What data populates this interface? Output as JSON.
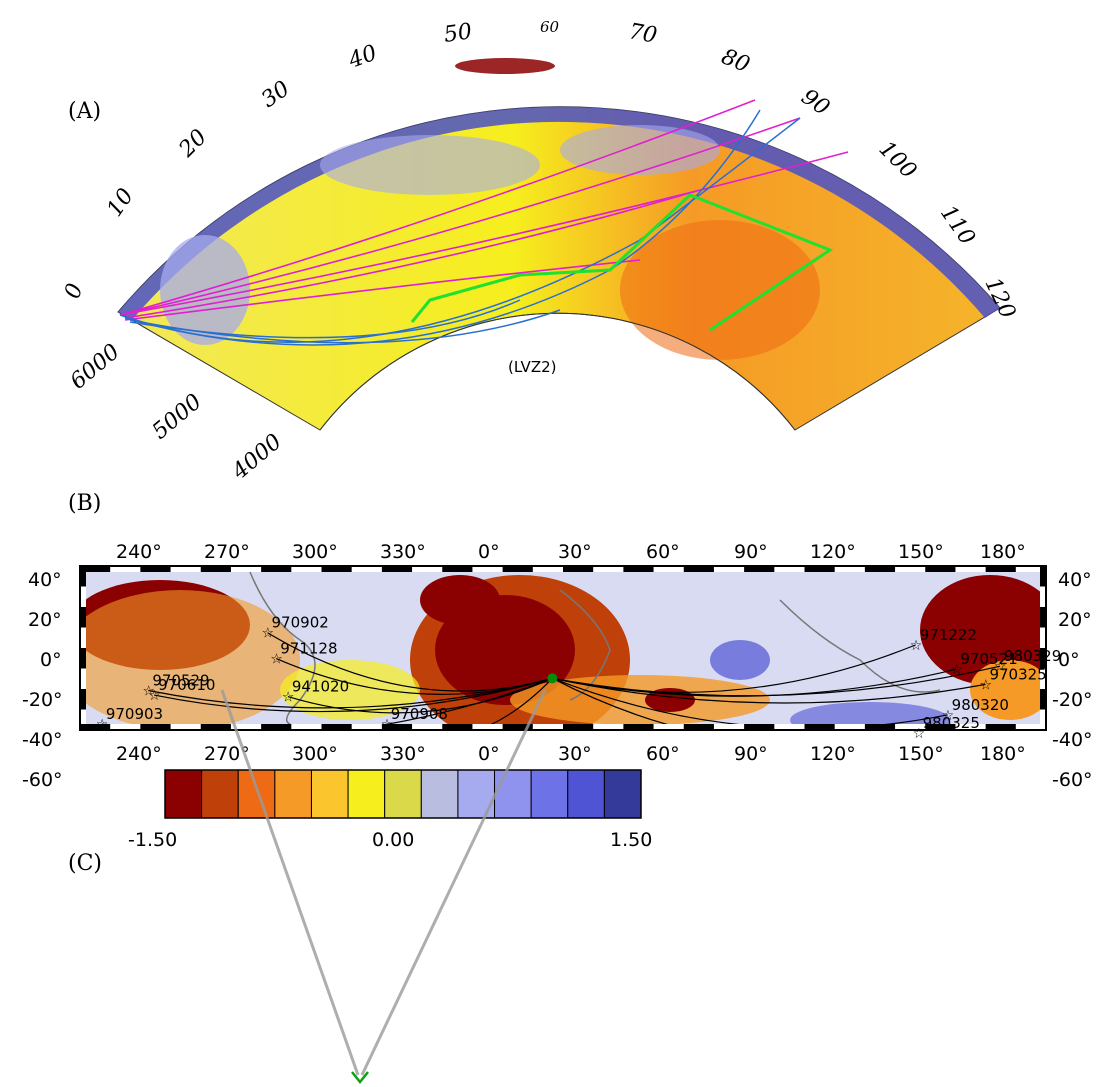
{
  "panel_a": {
    "label": "(A)",
    "angle_ticks": [
      "0",
      "10",
      "20",
      "30",
      "40",
      "50",
      "60",
      "70",
      "80",
      "90",
      "100",
      "110",
      "120"
    ],
    "radius_ticks": [
      "6000",
      "5000",
      "4000"
    ],
    "region_label": "(LVZ2)"
  },
  "panel_b": {
    "label": "(B)",
    "lon_ticks": [
      "240°",
      "270°",
      "300°",
      "330°",
      "0°",
      "30°",
      "60°",
      "90°",
      "120°",
      "150°",
      "180°"
    ],
    "lat_ticks": [
      "40°",
      "20°",
      "0°",
      "-20°",
      "-40°",
      "-60°"
    ],
    "events": [
      {
        "name": "970902",
        "lon": 288,
        "lat": 4
      },
      {
        "name": "971128",
        "lon": 291,
        "lat": -13
      },
      {
        "name": "970529",
        "lon": 247,
        "lat": -34
      },
      {
        "name": "970610",
        "lon": 249,
        "lat": -37
      },
      {
        "name": "941020",
        "lon": 295,
        "lat": -38
      },
      {
        "name": "970903",
        "lon": 231,
        "lat": -56
      },
      {
        "name": "970908",
        "lon": 329,
        "lat": -56
      },
      {
        "name": "971222",
        "lon": 151,
        "lat": -4
      },
      {
        "name": "980329",
        "lon": 180,
        "lat": -18
      },
      {
        "name": "970521",
        "lon": 165,
        "lat": -20
      },
      {
        "name": "970325",
        "lon": 175,
        "lat": -30
      },
      {
        "name": "980320",
        "lon": 162,
        "lat": -50
      },
      {
        "name": "980325",
        "lon": 152,
        "lat": -62
      }
    ],
    "station": {
      "lon": 26,
      "lat": -26
    }
  },
  "colorbar": {
    "min": "-1.50",
    "mid": "0.00",
    "max": "1.50",
    "colors": [
      "#8b0000",
      "#c0400a",
      "#ef6a14",
      "#f59a26",
      "#fbc52e",
      "#f6ee1d",
      "#d9d94a",
      "#b9bddf",
      "#a6aaee",
      "#8f93ee",
      "#6d72e6",
      "#4e54d4",
      "#343a9a"
    ]
  },
  "panel_c_label": "(C)"
}
